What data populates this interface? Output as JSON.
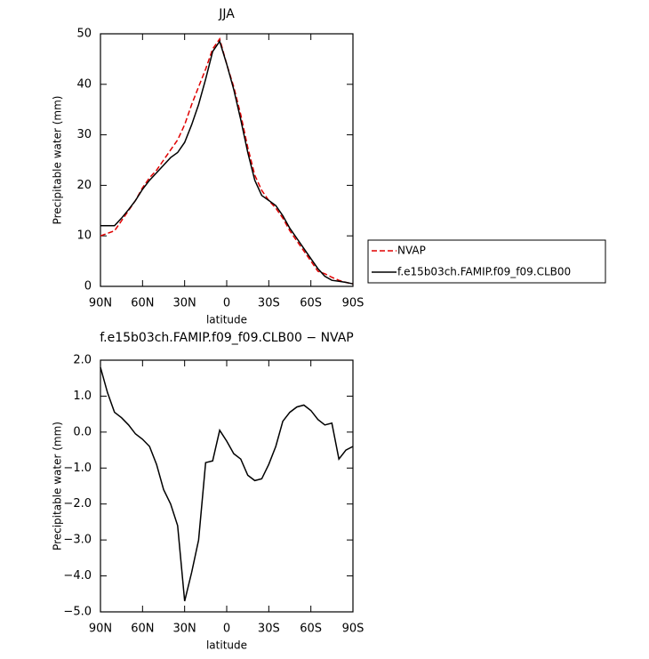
{
  "chart_data": [
    {
      "type": "line",
      "title": "JJA",
      "x_label": "latitude",
      "y_label": "Precipitable water (mm)",
      "x": [
        90,
        85,
        80,
        75,
        70,
        65,
        60,
        55,
        50,
        45,
        40,
        35,
        30,
        25,
        20,
        15,
        10,
        5,
        0,
        -5,
        -10,
        -15,
        -20,
        -25,
        -30,
        -35,
        -40,
        -45,
        -50,
        -55,
        -60,
        -65,
        -70,
        -75,
        -80,
        -85,
        -90
      ],
      "series": [
        {
          "name": "NVAP",
          "color": "#e00000",
          "dashed": true,
          "values": [
            10,
            10.5,
            11,
            13,
            15,
            17,
            19.5,
            21.5,
            23,
            25,
            27,
            29,
            32,
            36,
            39.5,
            43,
            47,
            49,
            44,
            39.5,
            34,
            27.5,
            22,
            19,
            17,
            15.5,
            13.5,
            11,
            9,
            7,
            5,
            3,
            2.5,
            1.8,
            1.2,
            0.8,
            0.5
          ]
        },
        {
          "name": "f.e15b03ch.FAMIP.f09_f09.CLB00",
          "color": "#000000",
          "dashed": false,
          "values": [
            12,
            12,
            12,
            13.5,
            15.2,
            17,
            19.2,
            21,
            22.5,
            24,
            25.5,
            26.5,
            28.5,
            32,
            36,
            41,
            46.5,
            48.5,
            44,
            39,
            33,
            26.5,
            21,
            18,
            17,
            16,
            14,
            11.5,
            9.5,
            7.5,
            5.5,
            3.5,
            2,
            1.2,
            1,
            0.8,
            0.5
          ]
        }
      ],
      "xlim": [
        90,
        -90
      ],
      "xticks": [
        {
          "value": 90,
          "label": "90N"
        },
        {
          "value": 60,
          "label": "60N"
        },
        {
          "value": 30,
          "label": "30N"
        },
        0,
        {
          "value": -30,
          "label": "30S"
        },
        {
          "value": -60,
          "label": "60S"
        },
        {
          "value": -90,
          "label": "90S"
        }
      ],
      "ylim": [
        0,
        50
      ],
      "yticks": [
        0,
        10,
        20,
        30,
        40,
        50
      ],
      "legend": "right"
    },
    {
      "type": "line",
      "title": "f.e15b03ch.FAMIP.f09_f09.CLB00 − NVAP",
      "x_label": "latitude",
      "y_label": "Precipitable water (mm)",
      "x": [
        90,
        85,
        80,
        75,
        70,
        65,
        60,
        55,
        50,
        45,
        40,
        35,
        30,
        25,
        20,
        15,
        10,
        5,
        0,
        -5,
        -10,
        -15,
        -20,
        -25,
        -30,
        -35,
        -40,
        -45,
        -50,
        -55,
        -60,
        -65,
        -70,
        -75,
        -80,
        -85,
        -90
      ],
      "series": [
        {
          "color": "#000000",
          "dashed": false,
          "values": [
            1.8,
            1.1,
            0.55,
            0.4,
            0.2,
            -0.05,
            -0.2,
            -0.4,
            -0.9,
            -1.6,
            -2.0,
            -2.6,
            -4.7,
            -3.9,
            -3.0,
            -0.85,
            -0.8,
            0.05,
            -0.25,
            -0.6,
            -0.75,
            -1.2,
            -1.35,
            -1.3,
            -0.9,
            -0.4,
            0.3,
            0.55,
            0.7,
            0.75,
            0.6,
            0.35,
            0.2,
            0.25,
            -0.75,
            -0.5,
            -0.4
          ]
        }
      ],
      "xlim": [
        90,
        -90
      ],
      "xticks": [
        {
          "value": 90,
          "label": "90N"
        },
        {
          "value": 60,
          "label": "60N"
        },
        {
          "value": 30,
          "label": "30N"
        },
        0,
        {
          "value": -30,
          "label": "30S"
        },
        {
          "value": -60,
          "label": "60S"
        },
        {
          "value": -90,
          "label": "90S"
        }
      ],
      "ylim": [
        -5,
        2
      ],
      "yticks": [
        {
          "value": -5,
          "label": "−5.0"
        },
        {
          "value": -4,
          "label": "−4.0"
        },
        {
          "value": -3,
          "label": "−3.0"
        },
        {
          "value": -2,
          "label": "−2.0"
        },
        {
          "value": -1,
          "label": "−1.0"
        },
        {
          "value": 0,
          "label": "0.0"
        },
        {
          "value": 1,
          "label": "1.0"
        },
        {
          "value": 2,
          "label": "2.0"
        }
      ]
    }
  ]
}
